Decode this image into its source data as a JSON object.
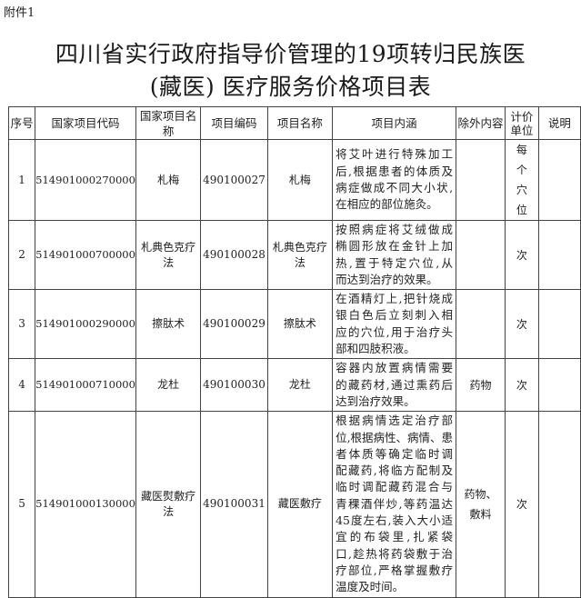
{
  "attachment_label": "附件1",
  "title_line1": "四川省实行政府指导价管理的19项转归民族医",
  "title_line2": "(藏医) 医疗服务价格项目表",
  "table": {
    "headers": [
      "序号",
      "国家项目代码",
      "国家项目名称",
      "项目编码",
      "项目名称",
      "项目内涵",
      "除外内容",
      "计价单位",
      "说明"
    ],
    "rows": [
      {
        "no": "1",
        "national_code": "514901000270000",
        "national_name": "札梅",
        "code": "490100027",
        "name": "札梅",
        "content": [
          "将艾叶进行特殊加工",
          "后,根据患者的体质及",
          "病症做成不同大小状,",
          "在相应的部位施灸。"
        ],
        "excluded": "",
        "unit": "每个穴位",
        "note": ""
      },
      {
        "no": "2",
        "national_code": "514901000700000",
        "national_name": "札典色克疗法",
        "code": "490100028",
        "name": "札典色克疗法",
        "content": [
          "按照病症将艾绒做成",
          "椭圆形放在金针上加",
          "热,置于特定穴位,从",
          "而达到治疗的效果。"
        ],
        "excluded": "",
        "unit": "次",
        "note": ""
      },
      {
        "no": "3",
        "national_code": "514901000290000",
        "national_name": "擦肽术",
        "code": "490100029",
        "name": "擦肽术",
        "content": [
          "在酒精灯上,把针烧成",
          "银白色后立刻刺入相",
          "应的穴位,用于治疗头",
          "部和四肢积液。"
        ],
        "excluded": "",
        "unit": "次",
        "note": ""
      },
      {
        "no": "4",
        "national_code": "514901000710000",
        "national_name": "龙杜",
        "code": "490100030",
        "name": "龙杜",
        "content": [
          "容器内放置病情需要",
          "的藏药材,通过熏药后",
          "达到治疗效果。"
        ],
        "excluded": "药物",
        "unit": "次",
        "note": ""
      },
      {
        "no": "5",
        "national_code": "514901000130000",
        "national_name": "藏医熨敷疗法",
        "code": "490100031",
        "name": "藏医敷疗",
        "content": [
          "根据病情选定治疗部",
          "位,根据病性、病情、患",
          "者体质等确定临时调",
          "配藏药,将临方配制及",
          "临时调配藏药混合与",
          "青稞酒伴炒,等药温达",
          "45度左右,装入大小适",
          "宜的布袋里,扎紧袋",
          "口,趁热将药袋敷于治",
          "疗部位,严格掌握敷疗",
          "温度及时间。"
        ],
        "excluded": "药物、敷料",
        "unit": "次",
        "note": ""
      }
    ]
  }
}
